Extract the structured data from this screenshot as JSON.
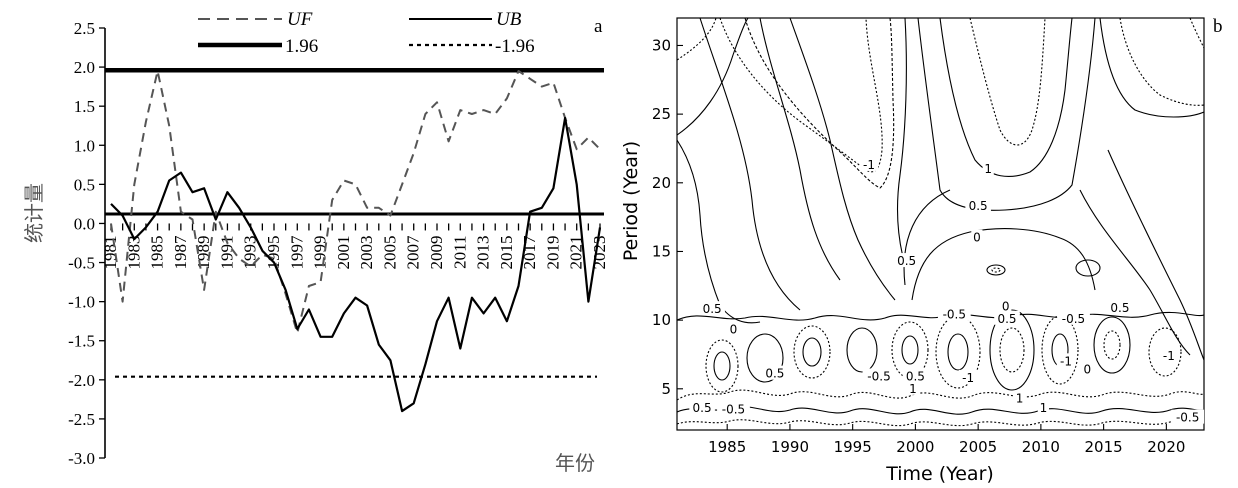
{
  "chart_data": [
    {
      "type": "line",
      "panel_label": "a",
      "xlabel": "年份",
      "ylabel": "统计量",
      "ylim": [
        -3.0,
        2.5
      ],
      "yticks": [
        "2.5",
        "2.0",
        "1.5",
        "1.0",
        "0.5",
        "0.0",
        "-0.5",
        "-1.0",
        "-1.5",
        "-2.0",
        "-2.5",
        "-3.0"
      ],
      "xticks": [
        "1981",
        "1983",
        "1985",
        "1987",
        "1989",
        "1991",
        "1993",
        "1995",
        "1997",
        "1999",
        "2001",
        "2003",
        "2005",
        "2007",
        "2009",
        "2011",
        "2013",
        "2015",
        "2017",
        "2019",
        "2021",
        "2023"
      ],
      "x": [
        1981,
        1982,
        1983,
        1984,
        1985,
        1986,
        1987,
        1988,
        1989,
        1990,
        1991,
        1992,
        1993,
        1994,
        1995,
        1996,
        1997,
        1998,
        1999,
        2000,
        2001,
        2002,
        2003,
        2004,
        2005,
        2006,
        2007,
        2008,
        2009,
        2010,
        2011,
        2012,
        2013,
        2014,
        2015,
        2016,
        2017,
        2018,
        2019,
        2020,
        2021,
        2022,
        2023
      ],
      "series": [
        {
          "name": "UF",
          "style": "dashed",
          "values": [
            0.0,
            -1.0,
            0.5,
            1.3,
            1.95,
            1.25,
            0.15,
            0.05,
            -0.85,
            0.15,
            -0.25,
            -0.45,
            -0.55,
            -0.4,
            -0.45,
            -0.9,
            -1.4,
            -0.8,
            -0.75,
            0.3,
            0.55,
            0.5,
            0.2,
            0.2,
            0.1,
            0.5,
            0.9,
            1.4,
            1.55,
            1.05,
            1.45,
            1.4,
            1.45,
            1.4,
            1.6,
            1.95,
            1.85,
            1.75,
            1.8,
            1.35,
            0.95,
            1.1,
            0.95
          ]
        },
        {
          "name": "UB",
          "style": "solid",
          "values": [
            0.25,
            0.1,
            -0.2,
            -0.05,
            0.15,
            0.55,
            0.65,
            0.4,
            0.45,
            0.05,
            0.4,
            0.2,
            -0.05,
            -0.35,
            -0.5,
            -0.85,
            -1.35,
            -1.1,
            -1.45,
            -1.45,
            -1.15,
            -0.95,
            -1.05,
            -1.55,
            -1.75,
            -2.4,
            -2.3,
            -1.8,
            -1.25,
            -0.95,
            -1.6,
            -0.95,
            -1.15,
            -0.95,
            -1.25,
            -0.8,
            0.15,
            0.2,
            0.45,
            1.35,
            0.5,
            -1.0,
            -0.05
          ]
        }
      ],
      "thresholds": [
        {
          "label": "1.96",
          "value": 1.96,
          "style": "thick-solid"
        },
        {
          "label": "-1.96",
          "value": -1.96,
          "style": "dotted"
        }
      ],
      "legend_placement": "top"
    },
    {
      "type": "contour",
      "panel_label": "b",
      "xlabel": "Time (Year)",
      "ylabel": "Period (Year)",
      "xlim": [
        1981,
        2023
      ],
      "ylim": [
        2,
        32
      ],
      "xticks": [
        "1985",
        "1990",
        "1995",
        "2000",
        "2005",
        "2010",
        "2015",
        "2020"
      ],
      "yticks": [
        "5",
        "10",
        "15",
        "20",
        "25",
        "30"
      ],
      "contour_labels": [
        {
          "text": "-1",
          "x": 1996.3,
          "y": 21.3
        },
        {
          "text": "1",
          "x": 2005.8,
          "y": 21.0
        },
        {
          "text": "0.5",
          "x": 2005.0,
          "y": 18.3
        },
        {
          "text": "0",
          "x": 2004.9,
          "y": 16.0
        },
        {
          "text": "0.5",
          "x": 1999.3,
          "y": 14.3
        },
        {
          "text": "0.5",
          "x": 1983.8,
          "y": 10.8
        },
        {
          "text": "0",
          "x": 1985.5,
          "y": 9.3
        },
        {
          "text": "0",
          "x": 2007.2,
          "y": 11.0
        },
        {
          "text": "-0.5",
          "x": 2003.1,
          "y": 10.4
        },
        {
          "text": "0.5",
          "x": 2007.3,
          "y": 10.1
        },
        {
          "text": "-0.5",
          "x": 2012.6,
          "y": 10.1
        },
        {
          "text": "0.5",
          "x": 2016.3,
          "y": 10.9
        },
        {
          "text": "0.5",
          "x": 1988.8,
          "y": 6.1
        },
        {
          "text": "-0.5",
          "x": 1997.1,
          "y": 5.9
        },
        {
          "text": "0.5",
          "x": 2000.0,
          "y": 5.9
        },
        {
          "text": "-1",
          "x": 2004.2,
          "y": 5.8
        },
        {
          "text": "-1",
          "x": 2012.0,
          "y": 7.0
        },
        {
          "text": "0",
          "x": 2013.7,
          "y": 6.4
        },
        {
          "text": "-1",
          "x": 2020.2,
          "y": 7.4
        },
        {
          "text": "0.5",
          "x": 1983.0,
          "y": 3.6
        },
        {
          "text": "-0.5",
          "x": 1985.5,
          "y": 3.5
        },
        {
          "text": "1",
          "x": 1999.8,
          "y": 5.0
        },
        {
          "text": "1",
          "x": 2008.3,
          "y": 4.3
        },
        {
          "text": "1",
          "x": 2010.2,
          "y": 3.6
        },
        {
          "text": "-0.5",
          "x": 2021.7,
          "y": 2.9
        }
      ]
    }
  ]
}
